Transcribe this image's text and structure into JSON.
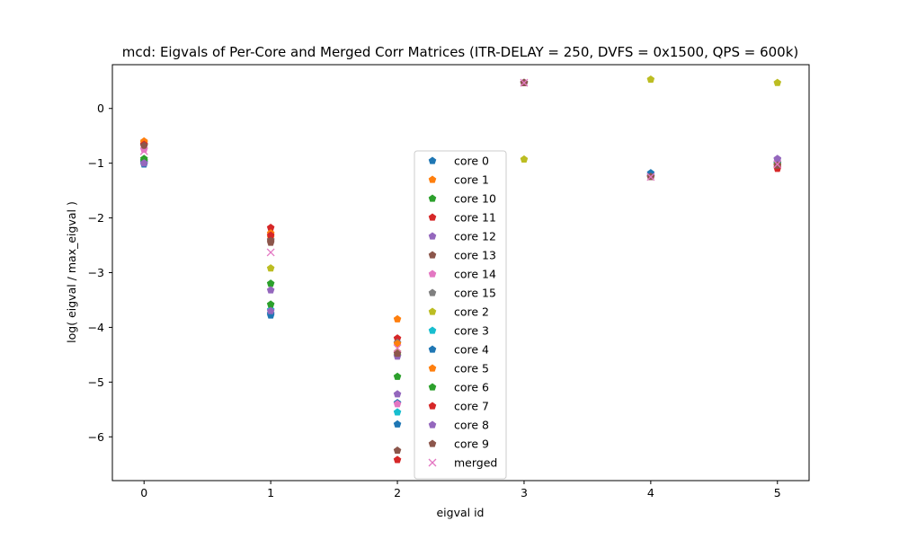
{
  "chart_data": {
    "type": "scatter",
    "title": "mcd: Eigvals of Per-Core and Merged Corr Matrices (ITR-DELAY = 250, DVFS = 0x1500, QPS = 600k)",
    "xlabel": "eigval id",
    "ylabel": "log( eigval / max_eigval )",
    "xlim": [
      -0.25,
      5.25
    ],
    "ylim": [
      -6.8,
      0.8
    ],
    "xticks": [
      0,
      1,
      2,
      3,
      4,
      5
    ],
    "yticks": [
      -6,
      -5,
      -4,
      -3,
      -2,
      -1,
      0
    ],
    "xtick_labels": [
      "0",
      "1",
      "2",
      "3",
      "4",
      "5"
    ],
    "ytick_labels": [
      "−6",
      "−5",
      "−4",
      "−3",
      "−2",
      "−1",
      "0"
    ],
    "grid": false,
    "legend_position": "center",
    "x": [
      0,
      1,
      2,
      3,
      4,
      5
    ],
    "series": [
      {
        "name": "core 0",
        "color": "#1f77b4",
        "marker": "pentagon",
        "values": [
          -1.02,
          -3.75,
          -5.38,
          0.47,
          -1.22,
          -1.0
        ]
      },
      {
        "name": "core 1",
        "color": "#ff7f0e",
        "marker": "pentagon",
        "values": [
          -0.6,
          -2.35,
          -3.85,
          0.47,
          -1.25,
          -1.05
        ]
      },
      {
        "name": "core 10",
        "color": "#2ca02c",
        "marker": "pentagon",
        "values": [
          -0.92,
          -3.2,
          -4.9,
          0.47,
          -1.25,
          -1.0
        ]
      },
      {
        "name": "core 11",
        "color": "#d62728",
        "marker": "pentagon",
        "values": [
          -0.68,
          -2.18,
          -4.2,
          0.47,
          -1.25,
          -1.1
        ]
      },
      {
        "name": "core 12",
        "color": "#9467bd",
        "marker": "pentagon",
        "values": [
          -0.97,
          -3.32,
          -5.22,
          0.47,
          -1.25,
          -0.92
        ]
      },
      {
        "name": "core 13",
        "color": "#8c564b",
        "marker": "pentagon",
        "values": [
          -0.67,
          -2.45,
          -6.25,
          0.47,
          -1.25,
          -1.05
        ]
      },
      {
        "name": "core 14",
        "color": "#e377c2",
        "marker": "pentagon",
        "values": [
          -0.75,
          -2.4,
          -5.4,
          0.47,
          -1.25,
          -1.02
        ]
      },
      {
        "name": "core 15",
        "color": "#7f7f7f",
        "marker": "pentagon",
        "values": [
          -0.65,
          -2.4,
          -4.28,
          0.47,
          -1.25,
          -1.0
        ]
      },
      {
        "name": "core 2",
        "color": "#bcbd22",
        "marker": "pentagon",
        "values": [
          -0.98,
          -2.92,
          -4.45,
          -0.93,
          0.53,
          0.47
        ]
      },
      {
        "name": "core 3",
        "color": "#17becf",
        "marker": "pentagon",
        "values": [
          -0.98,
          -3.68,
          -5.55,
          0.47,
          -1.25,
          -1.0
        ]
      },
      {
        "name": "core 4",
        "color": "#1f77b4",
        "marker": "pentagon",
        "values": [
          -0.98,
          -3.78,
          -5.77,
          0.47,
          -1.18,
          -1.02
        ]
      },
      {
        "name": "core 5",
        "color": "#ff7f0e",
        "marker": "pentagon",
        "values": [
          -0.62,
          -2.28,
          -4.3,
          0.47,
          -1.25,
          -1.03
        ]
      },
      {
        "name": "core 6",
        "color": "#2ca02c",
        "marker": "pentagon",
        "values": [
          -0.95,
          -3.58,
          -4.52,
          0.47,
          -1.25,
          -0.98
        ]
      },
      {
        "name": "core 7",
        "color": "#d62728",
        "marker": "pentagon",
        "values": [
          -0.66,
          -2.32,
          -6.42,
          0.47,
          -1.25,
          -1.08
        ]
      },
      {
        "name": "core 8",
        "color": "#9467bd",
        "marker": "pentagon",
        "values": [
          -1.0,
          -3.7,
          -4.53,
          0.47,
          -1.25,
          -0.93
        ]
      },
      {
        "name": "core 9",
        "color": "#8c564b",
        "marker": "pentagon",
        "values": [
          -0.68,
          -2.42,
          -4.48,
          0.47,
          -1.25,
          -1.04
        ]
      },
      {
        "name": "merged",
        "color": "#e377c2",
        "marker": "x",
        "values": [
          -0.78,
          -2.63,
          -4.38,
          0.47,
          -1.25,
          -1.02
        ]
      }
    ]
  }
}
